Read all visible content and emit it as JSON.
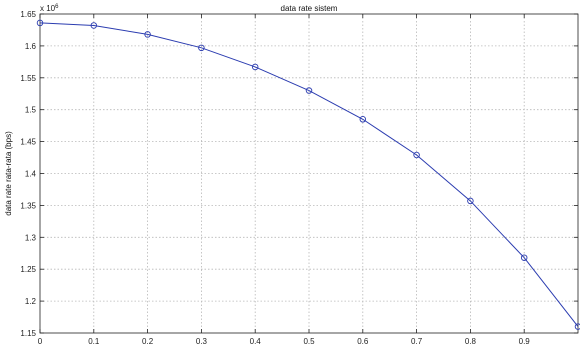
{
  "chart_data": {
    "type": "line",
    "title": "data rate sistem",
    "xlabel": "",
    "ylabel": "data rate rata-rata (bps)",
    "y_exponent_label": "x 10",
    "y_exponent_value": "6",
    "xlim": [
      0,
      1
    ],
    "ylim": [
      1.15,
      1.65
    ],
    "x_ticks": [
      0,
      0.1,
      0.2,
      0.3,
      0.4,
      0.5,
      0.6,
      0.7,
      0.8,
      0.9
    ],
    "x_tick_labels": [
      "0",
      "0.1",
      "0.2",
      "0.3",
      "0.4",
      "0.5",
      "0.6",
      "0.7",
      "0.8",
      "0.9"
    ],
    "y_ticks": [
      1.15,
      1.2,
      1.25,
      1.3,
      1.35,
      1.4,
      1.45,
      1.5,
      1.55,
      1.6,
      1.65
    ],
    "y_tick_labels": [
      "1.15",
      "1.2",
      "1.25",
      "1.3",
      "1.35",
      "1.4",
      "1.45",
      "1.5",
      "1.55",
      "1.6",
      "1.65"
    ],
    "grid": true,
    "series": [
      {
        "x": [
          0,
          0.1,
          0.2,
          0.3,
          0.4,
          0.5,
          0.6,
          0.7,
          0.8,
          0.9,
          1.0
        ],
        "values": [
          1.636,
          1.632,
          1.618,
          1.597,
          1.567,
          1.53,
          1.485,
          1.429,
          1.357,
          1.268,
          1.16
        ],
        "color": "#2b3cb0",
        "marker": "circle"
      }
    ]
  }
}
